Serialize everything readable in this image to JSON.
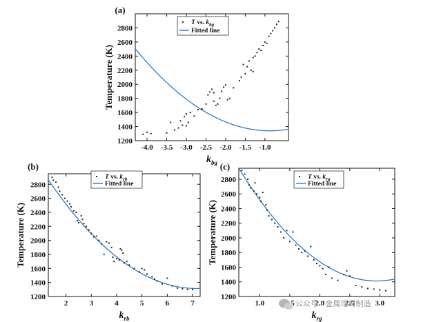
{
  "colors": {
    "fit": "#2f7cbf",
    "points": "#222222",
    "axes": "#111111"
  },
  "watermark": {
    "text": "公众号 · 金属增材制造",
    "icon": "chat-bubble-icon"
  },
  "chart_data": [
    {
      "type": "scatter",
      "panel": "(a)",
      "ylabel": "Temperature (K)",
      "xlabel": {
        "main": "k",
        "sub": "bg"
      },
      "legend": {
        "scatter_label": {
          "italic1": "T",
          "mid": " vs. ",
          "italic2": "k",
          "sub": "bg"
        },
        "line_label": "Fitted line",
        "position": "top-center"
      },
      "xlim": [
        -4.3,
        -0.4
      ],
      "ylim": [
        1200,
        3000
      ],
      "xticks": [
        -4.0,
        -3.5,
        -3.0,
        -2.5,
        -2.0,
        -1.5,
        -1.0
      ],
      "xtick_labels": [
        "-4.0",
        "-3.5",
        "-3.0",
        "-2.5",
        "-2.0",
        "-1.5",
        "-1.0"
      ],
      "yticks": [
        1200,
        1400,
        1600,
        1800,
        2000,
        2200,
        2400,
        2600,
        2800
      ],
      "fit": {
        "form": "quadratic",
        "coeffs": [
          1415.0,
          172.5,
          99.0
        ]
      },
      "points": [
        [
          -4.1,
          1290
        ],
        [
          -4.0,
          1320
        ],
        [
          -3.9,
          1300
        ],
        [
          -3.5,
          1310
        ],
        [
          -3.4,
          1460
        ],
        [
          -3.3,
          1350
        ],
        [
          -3.2,
          1380
        ],
        [
          -3.15,
          1480
        ],
        [
          -3.1,
          1420
        ],
        [
          -3.05,
          1540
        ],
        [
          -3.0,
          1410
        ],
        [
          -3.0,
          1580
        ],
        [
          -2.95,
          1460
        ],
        [
          -2.9,
          1600
        ],
        [
          -2.8,
          1550
        ],
        [
          -2.7,
          1640
        ],
        [
          -2.6,
          1650
        ],
        [
          -2.5,
          1720
        ],
        [
          -2.45,
          1850
        ],
        [
          -2.4,
          1890
        ],
        [
          -2.35,
          1930
        ],
        [
          -2.3,
          1760
        ],
        [
          -2.3,
          1880
        ],
        [
          -2.25,
          1700
        ],
        [
          -2.2,
          1720
        ],
        [
          -2.15,
          1800
        ],
        [
          -2.1,
          1900
        ],
        [
          -2.05,
          1960
        ],
        [
          -2.0,
          1990
        ],
        [
          -1.95,
          1780
        ],
        [
          -1.9,
          1800
        ],
        [
          -1.8,
          1950
        ],
        [
          -1.65,
          2050
        ],
        [
          -1.6,
          2100
        ],
        [
          -1.55,
          2280
        ],
        [
          -1.5,
          2150
        ],
        [
          -1.45,
          2250
        ],
        [
          -1.4,
          2330
        ],
        [
          -1.35,
          2200
        ],
        [
          -1.3,
          2380
        ],
        [
          -1.3,
          2180
        ],
        [
          -1.25,
          2400
        ],
        [
          -1.2,
          2450
        ],
        [
          -1.15,
          2500
        ],
        [
          -1.1,
          2480
        ],
        [
          -1.05,
          2550
        ],
        [
          -1.0,
          2600
        ],
        [
          -0.95,
          2580
        ],
        [
          -0.9,
          2680
        ],
        [
          -0.85,
          2720
        ],
        [
          -0.8,
          2760
        ],
        [
          -0.75,
          2800
        ],
        [
          -0.7,
          2850
        ],
        [
          -0.65,
          2890
        ]
      ]
    },
    {
      "type": "scatter",
      "panel": "(b)",
      "ylabel": "Temperature (K)",
      "xlabel": {
        "main": "k",
        "sub": "rb"
      },
      "legend": {
        "scatter_label": {
          "italic1": "T",
          "mid": " vs. ",
          "italic2": "k",
          "sub": "rb"
        },
        "line_label": "Fitted line",
        "position": "top-center"
      },
      "xlim": [
        1.3,
        7.3
      ],
      "ylim": [
        1200,
        2950
      ],
      "xticks": [
        2,
        3,
        4,
        5,
        6,
        7
      ],
      "xtick_labels": [
        "2",
        "3",
        "4",
        "5",
        "6",
        "7"
      ],
      "yticks": [
        1200,
        1400,
        1600,
        1800,
        2000,
        2200,
        2400,
        2600,
        2800
      ],
      "fit": {
        "form": "quadratic",
        "coeffs": [
          3627.0,
          -646.0,
          45.1
        ]
      },
      "points": [
        [
          1.45,
          2900
        ],
        [
          1.5,
          2860
        ],
        [
          1.6,
          2830
        ],
        [
          1.7,
          2760
        ],
        [
          1.75,
          2700
        ],
        [
          1.85,
          2650
        ],
        [
          1.95,
          2600
        ],
        [
          2.05,
          2560
        ],
        [
          2.15,
          2520
        ],
        [
          2.2,
          2480
        ],
        [
          2.3,
          2420
        ],
        [
          2.4,
          2400
        ],
        [
          2.45,
          2280
        ],
        [
          2.5,
          2250
        ],
        [
          2.6,
          2350
        ],
        [
          2.65,
          2300
        ],
        [
          2.7,
          2240
        ],
        [
          2.8,
          2200
        ],
        [
          2.9,
          2150
        ],
        [
          3.0,
          2100
        ],
        [
          3.1,
          2050
        ],
        [
          3.2,
          2060
        ],
        [
          3.3,
          2000
        ],
        [
          3.4,
          1950
        ],
        [
          3.5,
          1800
        ],
        [
          3.6,
          1980
        ],
        [
          3.7,
          1960
        ],
        [
          3.8,
          1900
        ],
        [
          3.85,
          1760
        ],
        [
          3.9,
          1700
        ],
        [
          4.0,
          1740
        ],
        [
          4.1,
          1720
        ],
        [
          4.15,
          1880
        ],
        [
          4.2,
          1860
        ],
        [
          4.25,
          1820
        ],
        [
          4.3,
          1680
        ],
        [
          4.4,
          1700
        ],
        [
          4.5,
          1650
        ],
        [
          4.7,
          1600
        ],
        [
          4.9,
          1550
        ],
        [
          5.0,
          1600
        ],
        [
          5.1,
          1580
        ],
        [
          5.2,
          1520
        ],
        [
          5.4,
          1480
        ],
        [
          5.5,
          1450
        ],
        [
          5.6,
          1420
        ],
        [
          5.8,
          1380
        ],
        [
          6.0,
          1460
        ],
        [
          6.2,
          1350
        ],
        [
          6.4,
          1320
        ],
        [
          6.6,
          1310
        ],
        [
          6.8,
          1300
        ],
        [
          7.0,
          1300
        ]
      ]
    },
    {
      "type": "scatter",
      "panel": "(c)",
      "ylabel": "Temperature (K)",
      "xlabel": {
        "main": "k",
        "sub": "rg"
      },
      "legend": {
        "scatter_label": {
          "italic1": "T",
          "mid": " vs. ",
          "italic2": "k",
          "sub": "rg"
        },
        "line_label": "Fitted line",
        "position": "top-center"
      },
      "xlim": [
        0.65,
        3.25
      ],
      "ylim": [
        1200,
        2950
      ],
      "xticks": [
        1.0,
        1.5,
        2.0,
        2.5,
        3.0
      ],
      "xtick_labels": [
        "1.0",
        "1.5",
        "2.0",
        "2.5",
        "3.0"
      ],
      "yticks": [
        1200,
        1400,
        1600,
        1800,
        2000,
        2200,
        2400,
        2600,
        2800
      ],
      "fit": {
        "form": "quadratic",
        "coeffs": [
          3947.2,
          -1721.0,
          292.0
        ]
      },
      "points": [
        [
          0.7,
          2920
        ],
        [
          0.75,
          2870
        ],
        [
          0.8,
          2800
        ],
        [
          0.82,
          2720
        ],
        [
          0.85,
          2680
        ],
        [
          0.9,
          2640
        ],
        [
          0.92,
          2750
        ],
        [
          0.95,
          2600
        ],
        [
          1.0,
          2550
        ],
        [
          1.02,
          2500
        ],
        [
          1.05,
          2620
        ],
        [
          1.1,
          2450
        ],
        [
          1.12,
          2380
        ],
        [
          1.15,
          2300
        ],
        [
          1.2,
          2250
        ],
        [
          1.25,
          2200
        ],
        [
          1.3,
          2150
        ],
        [
          1.35,
          2080
        ],
        [
          1.4,
          2000
        ],
        [
          1.45,
          2100
        ],
        [
          1.5,
          1950
        ],
        [
          1.55,
          2080
        ],
        [
          1.6,
          1900
        ],
        [
          1.65,
          1850
        ],
        [
          1.7,
          1800
        ],
        [
          1.75,
          1820
        ],
        [
          1.8,
          1750
        ],
        [
          1.85,
          1880
        ],
        [
          1.9,
          1700
        ],
        [
          1.95,
          1650
        ],
        [
          2.0,
          1620
        ],
        [
          2.05,
          1580
        ],
        [
          2.1,
          1500
        ],
        [
          2.15,
          1600
        ],
        [
          2.2,
          1450
        ],
        [
          2.3,
          1420
        ],
        [
          2.4,
          1500
        ],
        [
          2.45,
          1550
        ],
        [
          2.5,
          1480
        ],
        [
          2.6,
          1350
        ],
        [
          2.7,
          1330
        ],
        [
          2.8,
          1310
        ],
        [
          2.9,
          1300
        ],
        [
          3.0,
          1290
        ],
        [
          3.1,
          1280
        ]
      ]
    }
  ]
}
